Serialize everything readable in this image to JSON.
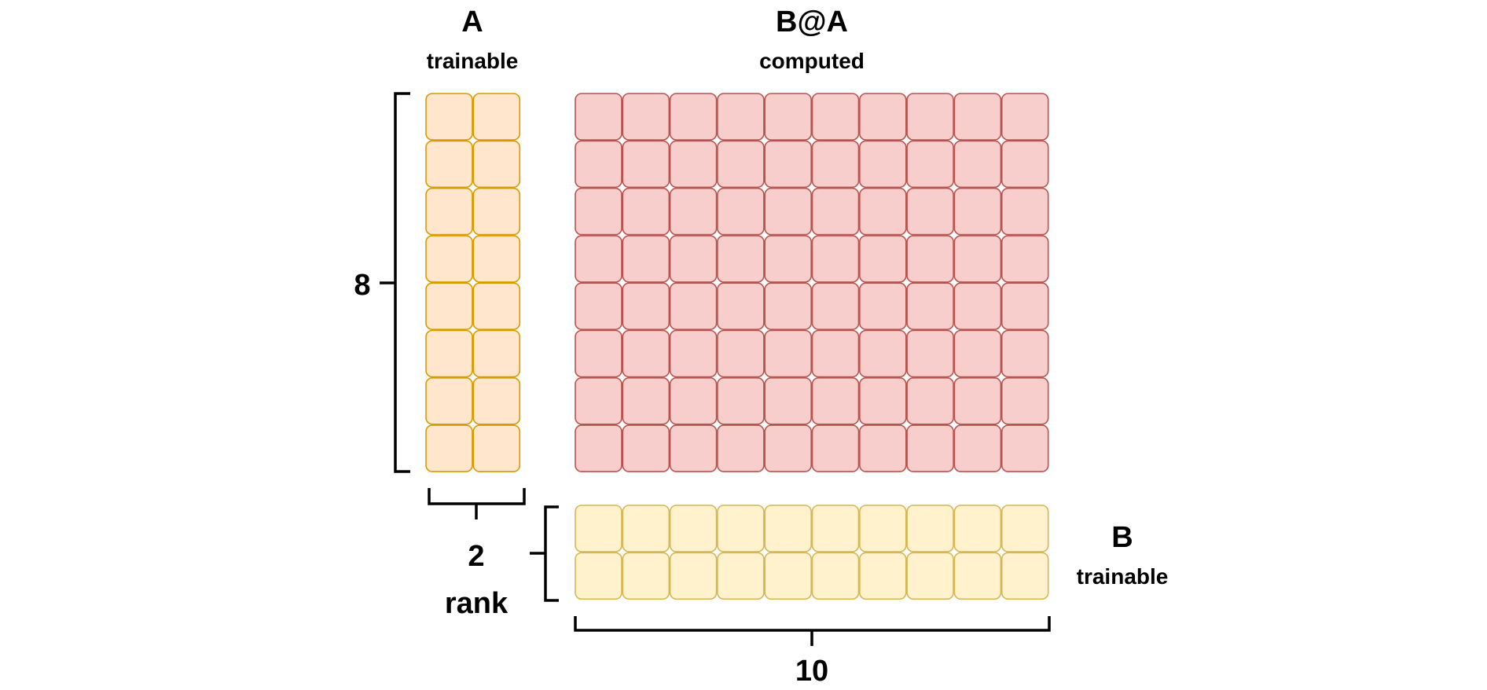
{
  "matrices": {
    "a": {
      "title": "A",
      "subtitle": "trainable",
      "rows": 8,
      "cols": 2,
      "fill": "#ffe6cc",
      "stroke": "#d79b00"
    },
    "ba": {
      "title": "B@A",
      "subtitle": "computed",
      "rows": 8,
      "cols": 10,
      "fill": "#f8cecc",
      "stroke": "#b85450"
    },
    "b": {
      "title": "B",
      "subtitle": "trainable",
      "rows": 2,
      "cols": 10,
      "fill": "#fff2cc",
      "stroke": "#d6b656"
    }
  },
  "dimensions": {
    "height": "8",
    "rank_value": "2",
    "rank_label": "rank",
    "width": "10"
  }
}
